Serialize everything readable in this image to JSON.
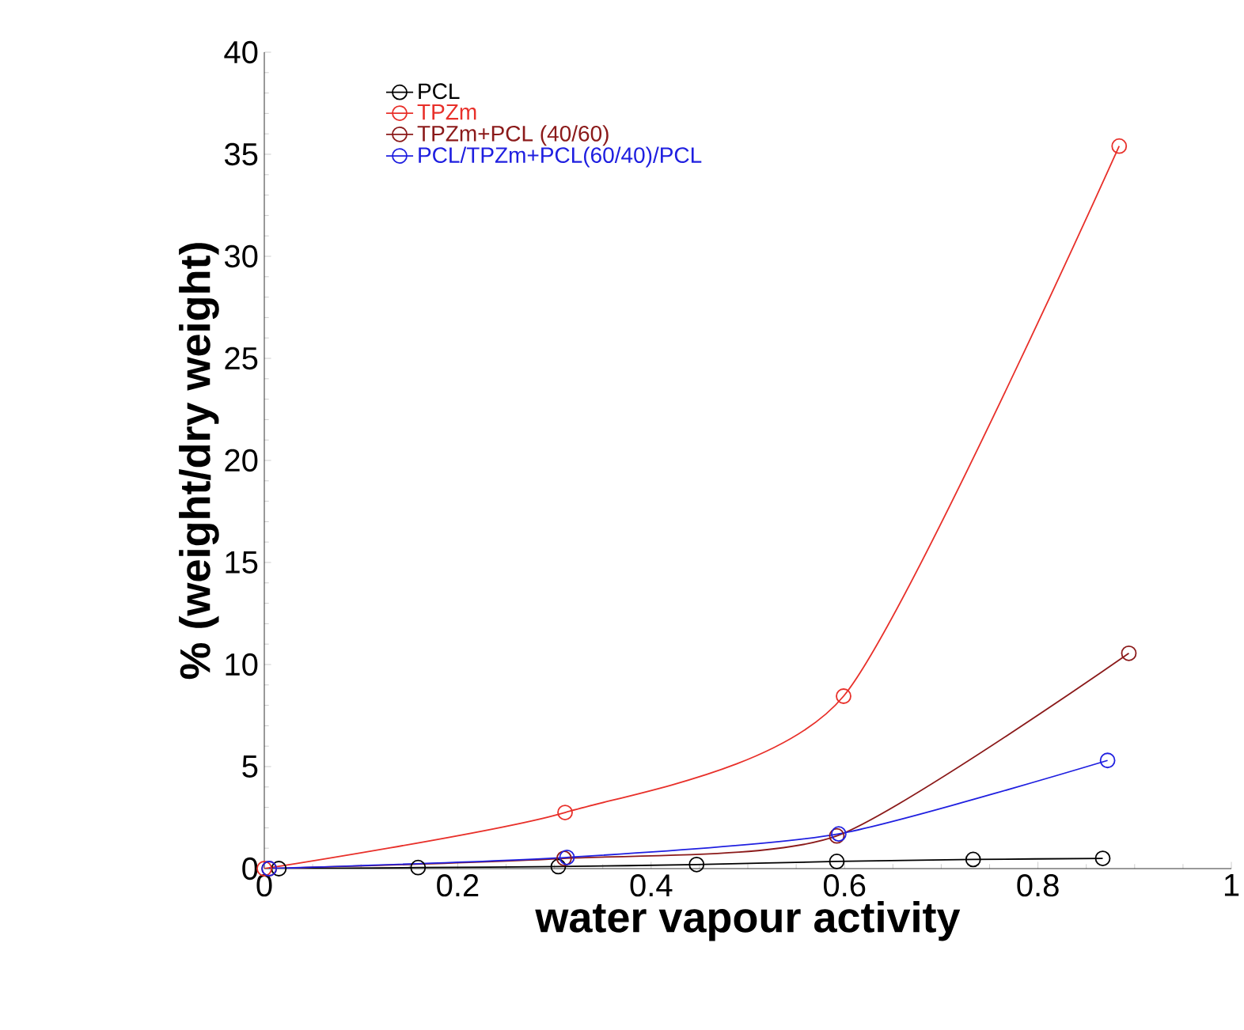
{
  "chart_data": {
    "type": "line",
    "xlabel": "water vapour activity",
    "ylabel": "% (weight/dry weight)",
    "xlim": [
      0,
      1
    ],
    "ylim": [
      0,
      40
    ],
    "xticks": [
      0,
      0.2,
      0.4,
      0.6,
      0.8,
      1
    ],
    "yticks": [
      0,
      5,
      10,
      15,
      20,
      25,
      30,
      35,
      40
    ],
    "grid": false,
    "legend": "top left",
    "marker": "circle",
    "line_style": "solid",
    "series": [
      {
        "name": "PCL",
        "color": "#000000",
        "x": [
          0.015,
          0.159,
          0.304,
          0.447,
          0.592,
          0.733,
          0.867
        ],
        "values": [
          0,
          0.05,
          0.1,
          0.2,
          0.35,
          0.45,
          0.5
        ]
      },
      {
        "name": "TPZm",
        "color": "#e8302a",
        "x": [
          0,
          0.311,
          0.599,
          0.884
        ],
        "values": [
          0,
          2.75,
          8.45,
          35.4
        ]
      },
      {
        "name": "TPZm+PCL (40/60)",
        "color": "#8b1a1a",
        "x": [
          0.005,
          0.31,
          0.592,
          0.894
        ],
        "values": [
          0,
          0.5,
          1.6,
          10.55
        ]
      },
      {
        "name": "PCL/TPZm+PCL(60/40)/PCL",
        "color": "#1f1fe0",
        "x": [
          0.005,
          0.313,
          0.594,
          0.872
        ],
        "values": [
          0,
          0.55,
          1.7,
          5.3
        ]
      }
    ]
  }
}
